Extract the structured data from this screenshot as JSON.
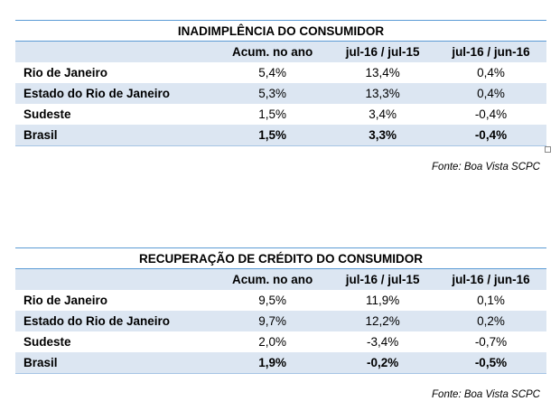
{
  "tables": [
    {
      "title": "INADIMPLÊNCIA DO CONSUMIDOR",
      "headers": [
        "",
        "Acum. no ano",
        "jul-16 / jul-15",
        "jul-16 / jun-16"
      ],
      "rows": [
        [
          "Rio de Janeiro",
          "5,4%",
          "13,4%",
          "0,4%"
        ],
        [
          "Estado do Rio de Janeiro",
          "5,3%",
          "13,3%",
          "0,4%"
        ],
        [
          "Sudeste",
          "1,5%",
          "3,4%",
          "-0,4%"
        ],
        [
          "Brasil",
          "1,5%",
          "3,3%",
          "-0,4%"
        ]
      ],
      "source": "Fonte: Boa Vista SCPC"
    },
    {
      "title": "RECUPERAÇÃO DE CRÉDITO DO CONSUMIDOR",
      "headers": [
        "",
        "Acum. no ano",
        "jul-16 / jul-15",
        "jul-16 / jun-16"
      ],
      "rows": [
        [
          "Rio de Janeiro",
          "9,5%",
          "11,9%",
          "0,1%"
        ],
        [
          "Estado do Rio de Janeiro",
          "9,7%",
          "12,2%",
          "0,2%"
        ],
        [
          "Sudeste",
          "2,0%",
          "-3,4%",
          "-0,7%"
        ],
        [
          "Brasil",
          "1,9%",
          "-0,2%",
          "-0,5%"
        ]
      ],
      "source": "Fonte: Boa Vista SCPC"
    }
  ],
  "colors": {
    "rule": "#5b9bd5",
    "shade": "#dce6f2"
  }
}
